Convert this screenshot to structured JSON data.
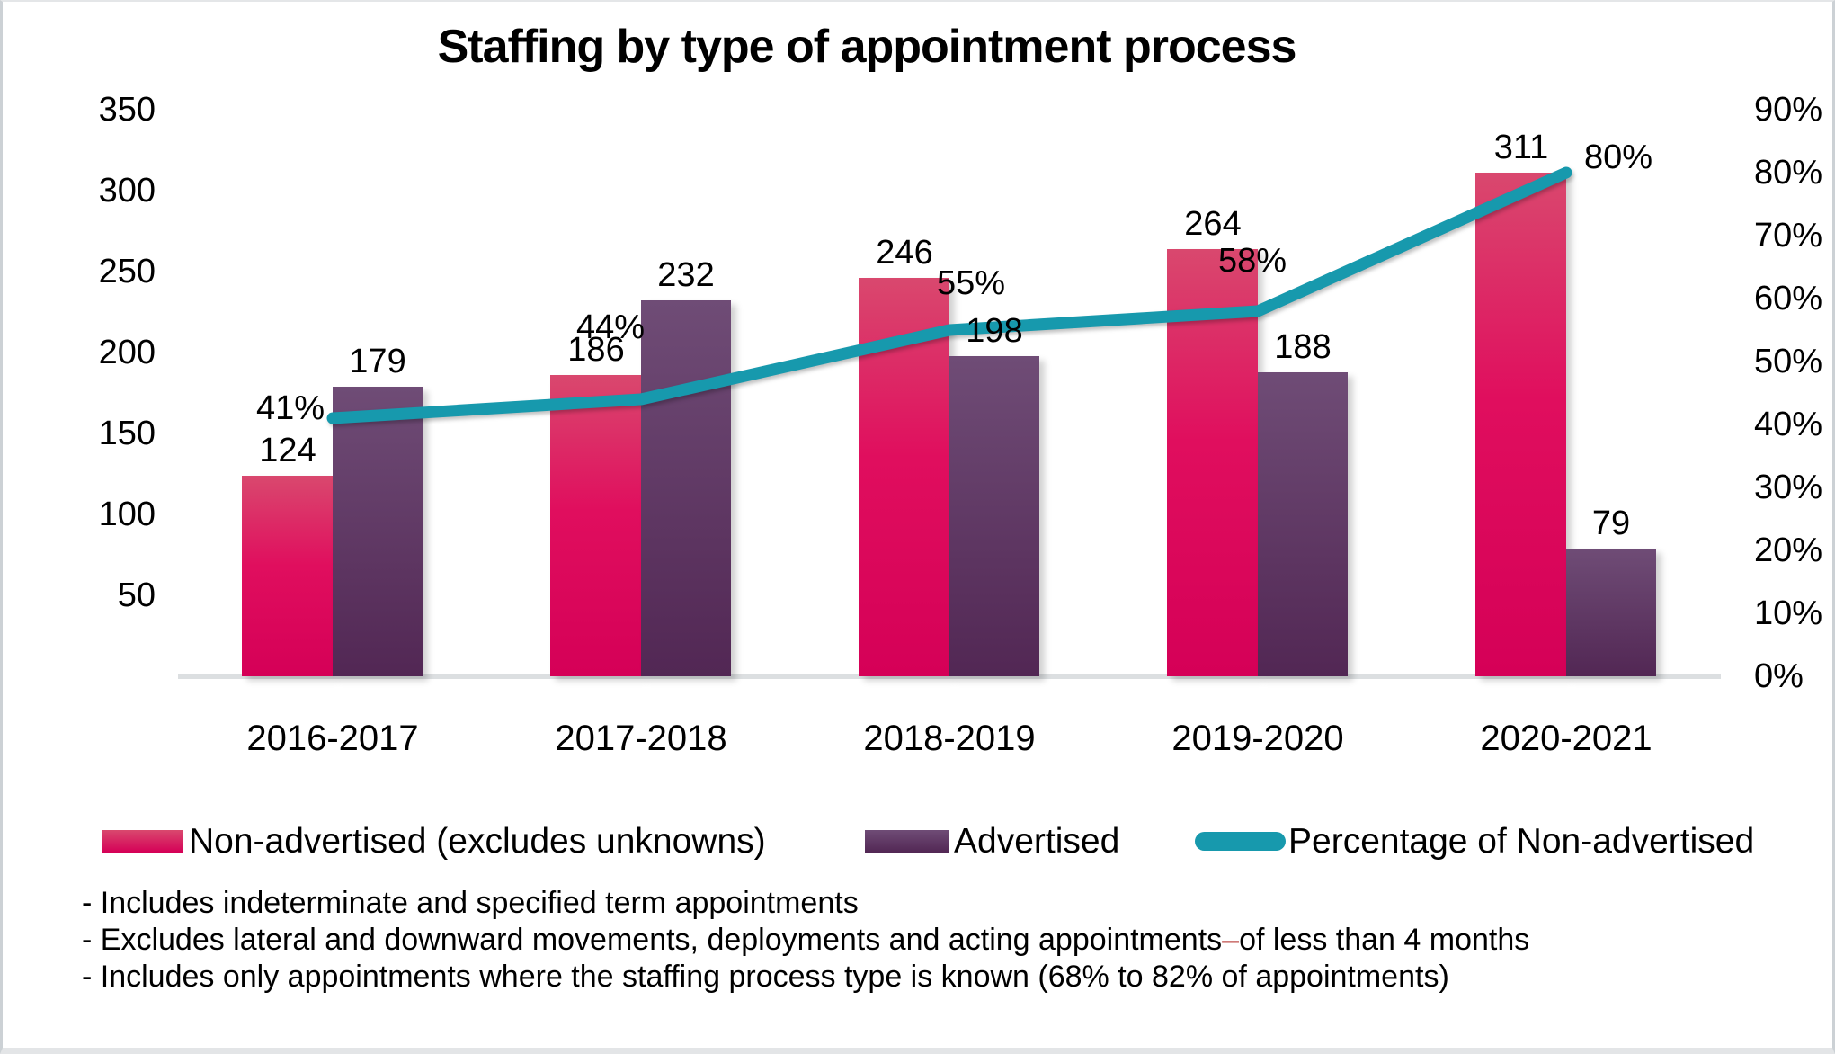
{
  "title": "Staffing by type of appointment process",
  "chart_data": {
    "type": "bar",
    "subtype": "combo-bar-line-dual-axis",
    "categories": [
      "2016-2017",
      "2017-2018",
      "2018-2019",
      "2019-2020",
      "2020-2021"
    ],
    "series": [
      {
        "name": "Non-advertised (excludes unknowns)",
        "type": "bar",
        "axis": "left",
        "color_top": "#d9486e",
        "color_bottom": "#d50057",
        "values": [
          124,
          186,
          246,
          264,
          311
        ],
        "labels": [
          "124",
          "186",
          "246",
          "264",
          "311"
        ]
      },
      {
        "name": "Advertised",
        "type": "bar",
        "axis": "left",
        "color_top": "#6f4c76",
        "color_bottom": "#522754",
        "values": [
          179,
          232,
          198,
          188,
          79
        ],
        "labels": [
          "179",
          "232",
          "198",
          "188",
          "79"
        ]
      },
      {
        "name": "Percentage of Non-advertised",
        "type": "line",
        "axis": "right",
        "color": "#1799ad",
        "values": [
          41,
          44,
          55,
          58,
          80
        ],
        "labels": [
          "41%",
          "44%",
          "55%",
          "58%",
          "80%"
        ]
      }
    ],
    "left_axis": {
      "ticks": [
        350,
        300,
        250,
        200,
        150,
        100,
        50
      ],
      "min": 0,
      "max": 350,
      "grid": false
    },
    "right_axis": {
      "ticks": [
        "90%",
        "80%",
        "70%",
        "60%",
        "50%",
        "40%",
        "30%",
        "20%",
        "10%",
        "0%"
      ],
      "min": 0,
      "max": 90,
      "grid": false
    },
    "legend_position": "bottom",
    "title": "Staffing by type of appointment process"
  },
  "footnotes": {
    "line1": "- Includes indeterminate and specified term appointments",
    "line2_a": "- Excludes lateral and downward movements, deployments and acting appointments",
    "line2_dash": "–",
    "line2_b": "of less than 4 months",
    "line3": "- Includes only appointments where the staffing process type is known (68% to 82% of appointments)"
  }
}
